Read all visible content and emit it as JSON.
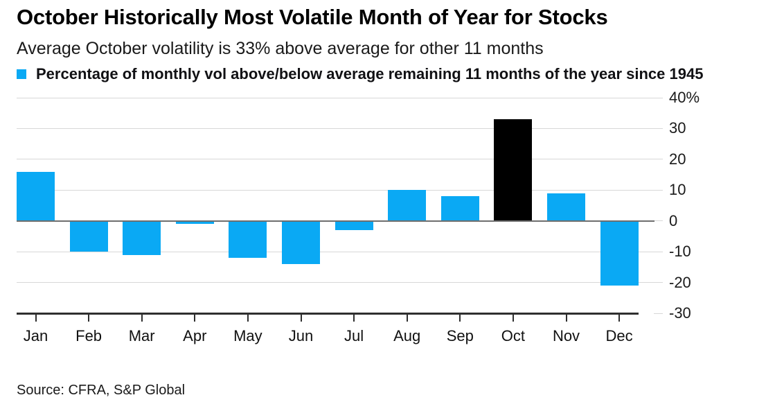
{
  "chart_data": {
    "type": "bar",
    "title": "October Historically Most Volatile Month of Year for Stocks",
    "subtitle": "Average October volatility is 33% above average for other 11 months",
    "legend_label": "Percentage of monthly vol above/below average remaining 11 months of the year since 1945",
    "categories": [
      "Jan",
      "Feb",
      "Mar",
      "Apr",
      "May",
      "Jun",
      "Jul",
      "Aug",
      "Sep",
      "Oct",
      "Nov",
      "Dec"
    ],
    "values": [
      16,
      -10,
      -11,
      -1,
      -12,
      -14,
      -3,
      10,
      8,
      33,
      9,
      -21
    ],
    "unit": "%",
    "highlight_category": "Oct",
    "bar_color": "#0AA9F4",
    "highlight_color": "#000000",
    "grid_color": "#d7d7d7",
    "zero_line_color": "#6e6e6e",
    "axis_color": "#2e2e2e",
    "ylim": [
      -30,
      40
    ],
    "yticks": [
      40,
      30,
      20,
      10,
      0,
      -10,
      -20,
      -30
    ],
    "ytick_labels": [
      "40%",
      "30",
      "20",
      "10",
      "0",
      "-10",
      "-20",
      "-30"
    ],
    "grid": true,
    "legend_position": "top-left",
    "xlabel": "",
    "ylabel": ""
  },
  "source": {
    "label": "Source: CFRA, S&P Global"
  }
}
